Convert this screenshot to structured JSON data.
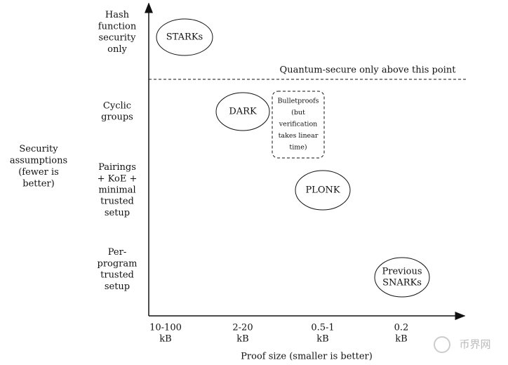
{
  "y_axis": {
    "label": [
      "Security",
      "assumptions",
      "(fewer is",
      "better)"
    ],
    "categories": [
      [
        "Hash",
        "function",
        "security",
        "only"
      ],
      [
        "Cyclic",
        "groups"
      ],
      [
        "Pairings",
        "+ KoE +",
        "minimal",
        "trusted",
        "setup"
      ],
      [
        "Per-",
        "program",
        "trusted",
        "setup"
      ]
    ]
  },
  "x_axis": {
    "label": "Proof size (smaller is better)",
    "categories": [
      [
        "10-100",
        "kB"
      ],
      [
        "2-20",
        "kB"
      ],
      [
        "0.5-1",
        "kB"
      ],
      [
        "0.2",
        "kB"
      ]
    ]
  },
  "threshold": "Quantum-secure only above this point",
  "nodes": [
    {
      "label": [
        "STARKs"
      ]
    },
    {
      "label": [
        "DARK"
      ]
    },
    {
      "label": [
        "Bulletproofs",
        "(but",
        "verification",
        "takes linear",
        "time)"
      ]
    },
    {
      "label": [
        "PLONK"
      ]
    },
    {
      "label": [
        "Previous",
        "SNARKs"
      ]
    }
  ],
  "watermark": "币界网"
}
